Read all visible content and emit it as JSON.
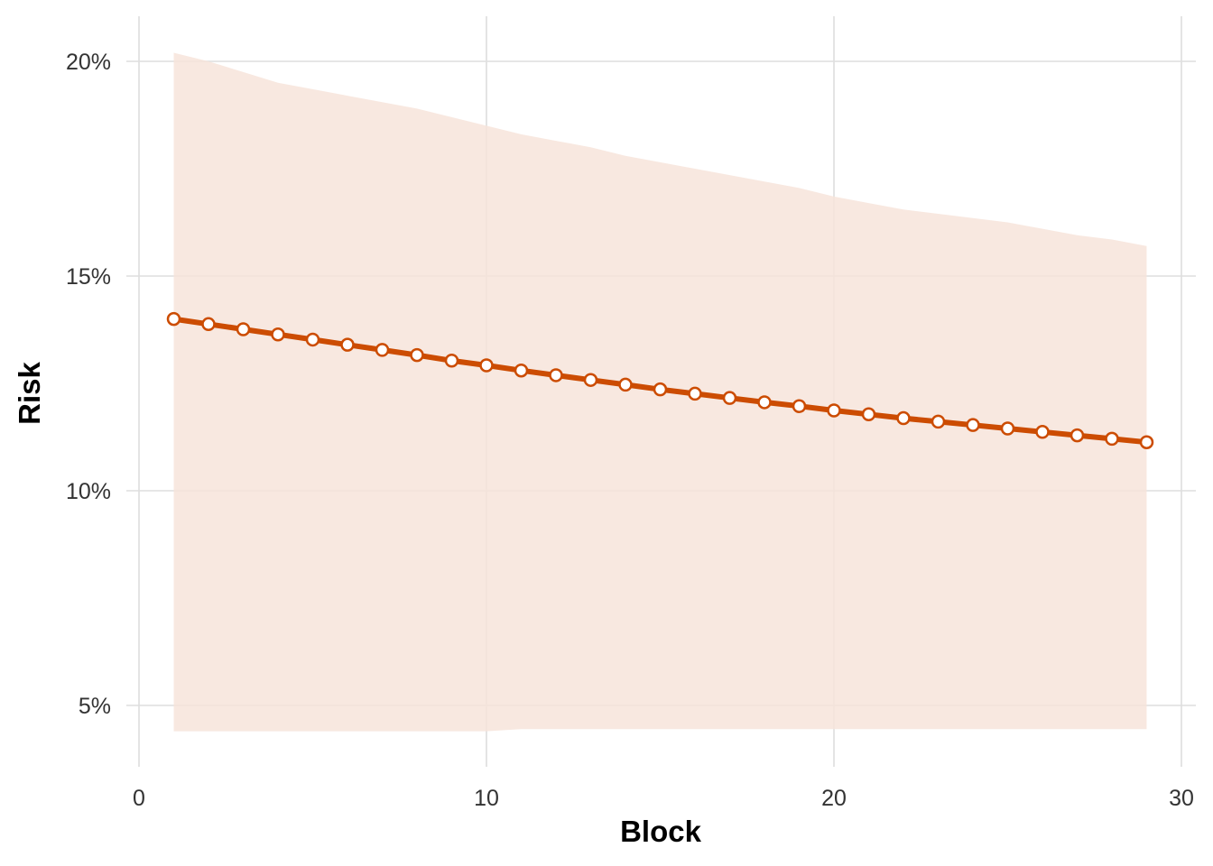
{
  "chart_data": {
    "type": "line",
    "title": "",
    "xlabel": "Block",
    "ylabel": "Risk",
    "xlim": [
      0,
      30.5
    ],
    "ylim": [
      3.8,
      21.3
    ],
    "x_ticks": [
      0,
      10,
      20,
      30
    ],
    "x_tick_labels": [
      "0",
      "10",
      "20",
      "30"
    ],
    "y_ticks": [
      5,
      10,
      15,
      20
    ],
    "y_tick_labels": [
      "5%",
      "10%",
      "15%",
      "20%"
    ],
    "grid": true,
    "legend": "none",
    "colors": {
      "line": "#cc4c02",
      "band": "#f7e4db",
      "grid": "#dedede"
    },
    "series": [
      {
        "x": [
          1,
          2,
          3,
          4,
          5,
          6,
          7,
          8,
          9,
          10,
          11,
          12,
          13,
          14,
          15,
          16,
          17,
          18,
          19,
          20,
          21,
          22,
          23,
          24,
          25,
          26,
          27,
          28,
          29
        ],
        "values": [
          14.0,
          13.88,
          13.76,
          13.64,
          13.52,
          13.4,
          13.28,
          13.16,
          13.03,
          12.92,
          12.8,
          12.69,
          12.58,
          12.47,
          12.36,
          12.26,
          12.16,
          12.06,
          11.97,
          11.87,
          11.78,
          11.69,
          11.61,
          11.53,
          11.45,
          11.37,
          11.29,
          11.21,
          11.13
        ],
        "lower": [
          4.4,
          4.4,
          4.4,
          4.4,
          4.4,
          4.4,
          4.4,
          4.4,
          4.4,
          4.4,
          4.45,
          4.45,
          4.45,
          4.45,
          4.45,
          4.45,
          4.45,
          4.45,
          4.45,
          4.45,
          4.45,
          4.45,
          4.45,
          4.45,
          4.45,
          4.45,
          4.45,
          4.45,
          4.45
        ],
        "upper": [
          20.2,
          20.0,
          19.75,
          19.5,
          19.35,
          19.2,
          19.05,
          18.9,
          18.7,
          18.5,
          18.3,
          18.15,
          18.0,
          17.8,
          17.65,
          17.5,
          17.35,
          17.2,
          17.05,
          16.85,
          16.7,
          16.55,
          16.45,
          16.35,
          16.25,
          16.1,
          15.95,
          15.85,
          15.7
        ]
      }
    ]
  }
}
